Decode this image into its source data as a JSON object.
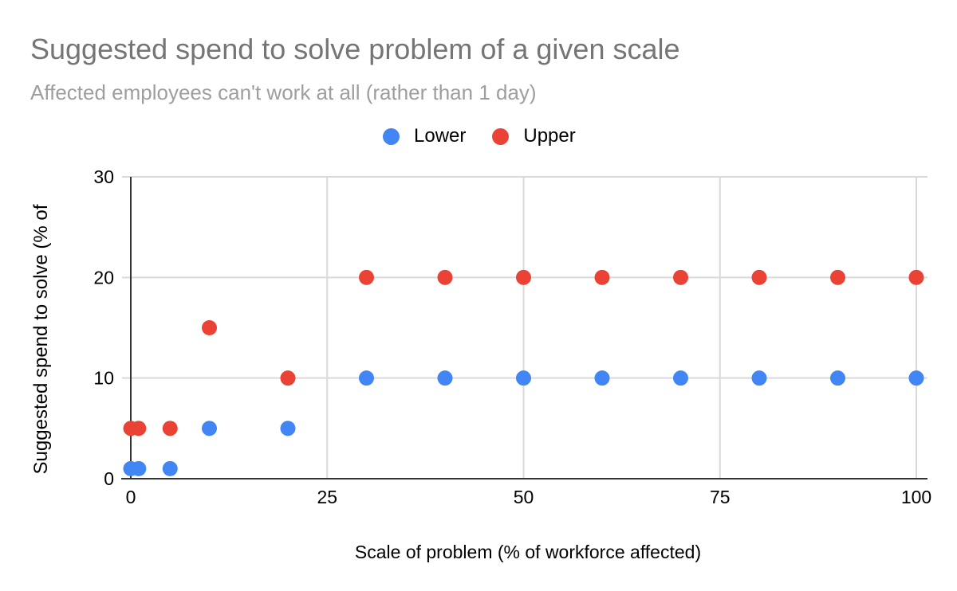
{
  "chart_data": {
    "type": "scatter",
    "title": "Suggested spend to solve problem of a given scale",
    "subtitle": "Affected employees can't work at all (rather than 1 day)",
    "xlabel": "Scale of problem (% of workforce affected)",
    "ylabel": "Suggested spend to solve (% of",
    "x": [
      0,
      1,
      5,
      10,
      20,
      30,
      40,
      50,
      60,
      70,
      80,
      90,
      100
    ],
    "series": [
      {
        "name": "Lower",
        "color": "#4285F4",
        "values": [
          1,
          1,
          1,
          5,
          5,
          10,
          10,
          10,
          10,
          10,
          10,
          10,
          10
        ]
      },
      {
        "name": "Upper",
        "color": "#EA4335",
        "values": [
          5,
          5,
          5,
          15,
          10,
          20,
          20,
          20,
          20,
          20,
          20,
          20,
          20
        ]
      }
    ],
    "xlim": [
      0,
      100
    ],
    "ylim": [
      0,
      30
    ],
    "x_ticks": [
      0,
      25,
      50,
      75,
      100
    ],
    "y_ticks": [
      0,
      10,
      20,
      30
    ],
    "grid": true,
    "legend_position": "top",
    "colors": {
      "title": "#757575",
      "subtitle": "#9e9e9e",
      "axis_line": "#333333",
      "gridline": "#d9d9d9",
      "tick_label": "#000000"
    }
  }
}
